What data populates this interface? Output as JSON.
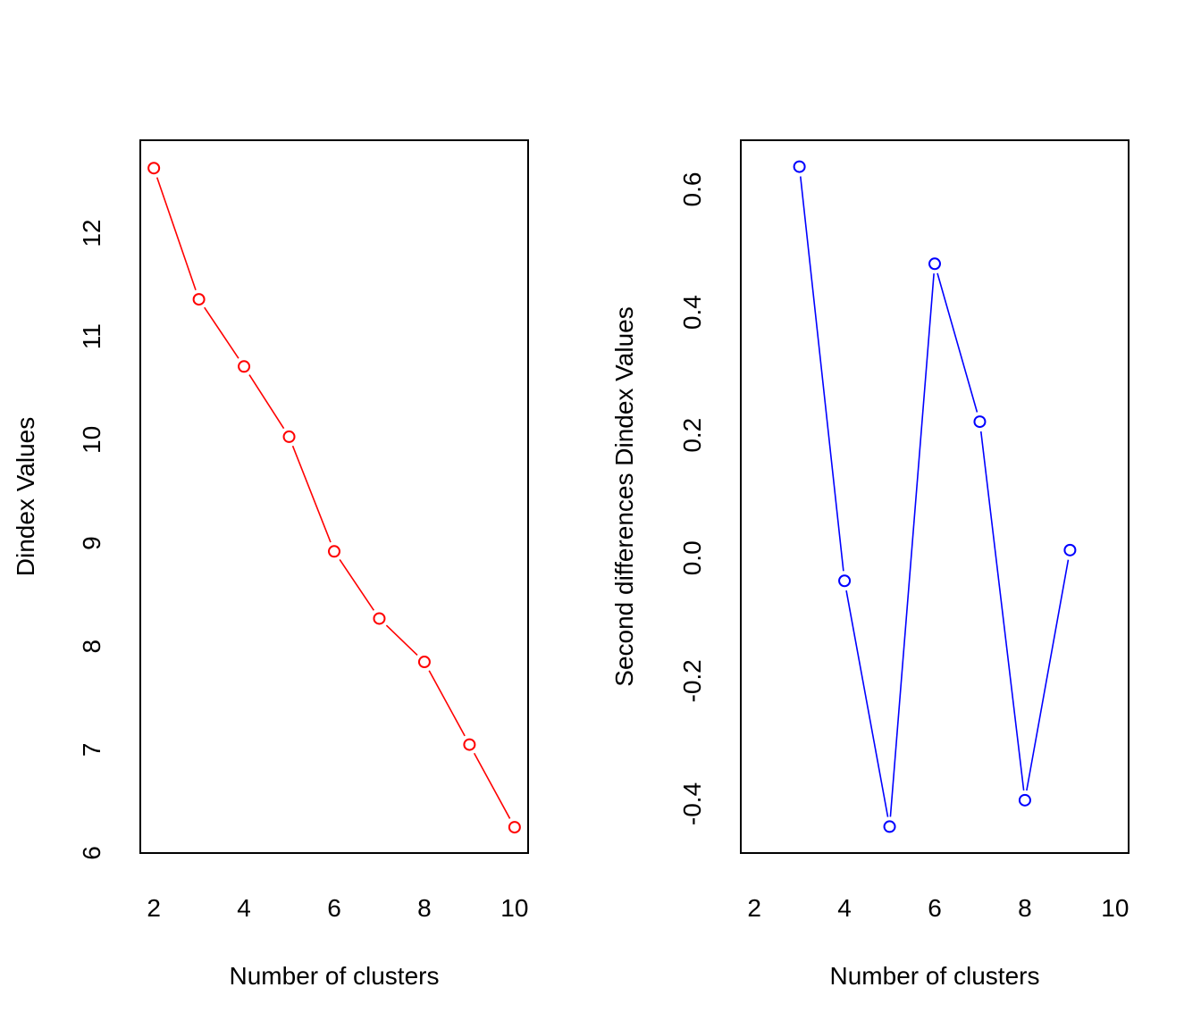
{
  "chart_data": [
    {
      "type": "line",
      "title": "",
      "xlabel": "Number of clusters",
      "ylabel": "Dindex Values",
      "xlim": [
        1.7,
        10.3
      ],
      "ylim": [
        6.0,
        12.9
      ],
      "xticks": [
        2,
        4,
        6,
        8,
        10
      ],
      "yticks": [
        6,
        7,
        8,
        9,
        10,
        11,
        12
      ],
      "grid": false,
      "legend": "none",
      "color": "#ff0000",
      "marker": "open-circle",
      "x": [
        2,
        3,
        4,
        5,
        6,
        7,
        8,
        9,
        10
      ],
      "values": [
        12.63,
        11.36,
        10.71,
        10.03,
        8.92,
        8.27,
        7.85,
        7.05,
        6.25
      ]
    },
    {
      "type": "line",
      "title": "",
      "xlabel": "Number of clusters",
      "ylabel": "Second differences Dindex Values",
      "xlim": [
        1.7,
        10.3
      ],
      "ylim": [
        -0.48,
        0.68
      ],
      "xticks": [
        2,
        4,
        6,
        8,
        10
      ],
      "yticks": [
        -0.4,
        -0.2,
        0.0,
        0.2,
        0.4,
        0.6
      ],
      "ytick_labels": [
        "-0.4",
        "-0.2",
        "0.0",
        "0.2",
        "0.4",
        "0.6"
      ],
      "grid": false,
      "legend": "none",
      "color": "#0000ff",
      "marker": "open-circle",
      "x": [
        3,
        4,
        5,
        6,
        7,
        8,
        9
      ],
      "values": [
        0.637,
        -0.037,
        -0.437,
        0.479,
        0.222,
        -0.394,
        0.013
      ]
    }
  ]
}
